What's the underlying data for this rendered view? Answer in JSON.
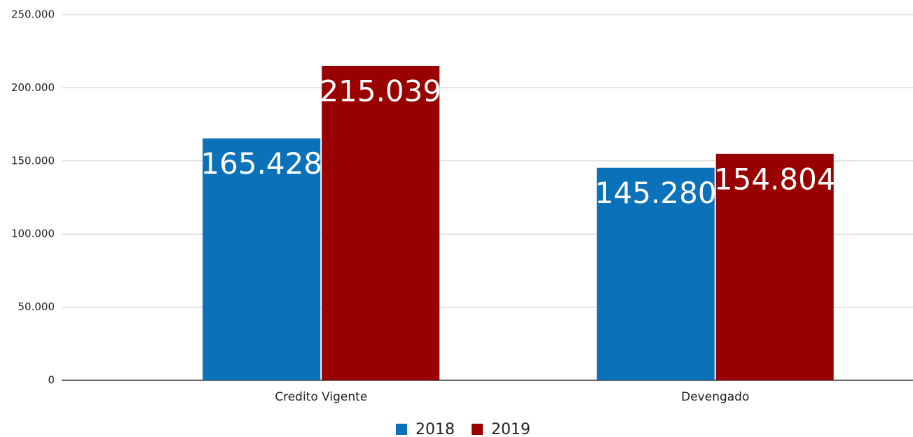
{
  "chart_data": {
    "type": "bar",
    "categories": [
      "Credito Vigente",
      "Devengado"
    ],
    "series": [
      {
        "name": "2018",
        "color": "#0b72ba",
        "values": [
          165428,
          145280
        ],
        "value_labels": [
          "165.428",
          "145.280"
        ]
      },
      {
        "name": "2019",
        "color": "#990000",
        "values": [
          215039,
          154804
        ],
        "value_labels": [
          "215.039",
          "154.804"
        ]
      }
    ],
    "ylim": [
      0,
      250000
    ],
    "yticks": [
      0,
      {
        "value": 50000,
        "label": "50.000"
      },
      {
        "value": 100000,
        "label": "100.000"
      },
      {
        "value": 150000,
        "label": "150.000"
      },
      {
        "value": 200000,
        "label": "200.000"
      },
      {
        "value": 250000,
        "label": "250.000"
      }
    ],
    "grid": true,
    "legend": "bottom"
  }
}
